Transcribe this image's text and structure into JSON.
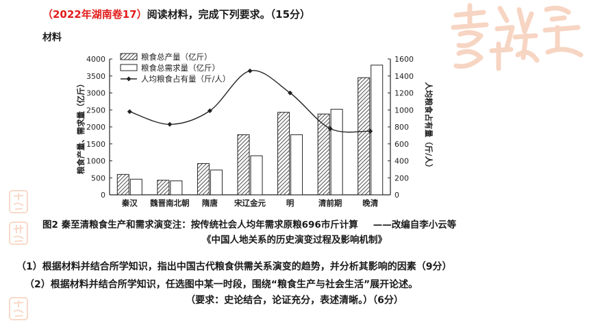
{
  "header": {
    "tag": "（2022年湖南卷17）",
    "instruction": "阅读材料，完成下列要求。（15分）",
    "material_label": "材料"
  },
  "chart_data": {
    "type": "bar",
    "categories": [
      "秦汉",
      "魏晋南北朝",
      "隋唐",
      "宋辽金元",
      "明",
      "清前期",
      "晚清"
    ],
    "series": [
      {
        "name": "粮食总产量（亿斤）",
        "values": [
          600,
          430,
          920,
          1770,
          2430,
          2380,
          3450
        ],
        "style": "hatched"
      },
      {
        "name": "粮食总需求量（亿斤）",
        "values": [
          460,
          410,
          730,
          1150,
          1770,
          2520,
          3820
        ],
        "style": "open"
      },
      {
        "name": "人均粮食占有量（斤/人）",
        "values": [
          980,
          830,
          990,
          1460,
          1200,
          780,
          750
        ],
        "style": "line"
      }
    ],
    "ylabel_left": "粮食产量、需求量（亿斤）",
    "ylabel_right": "人均粮食占有量（斤/人）",
    "ylim_left": [
      0,
      4000
    ],
    "ylim_right": [
      0,
      1600
    ],
    "yticks_left": [
      "0",
      "500",
      "1000",
      "1500",
      "2000",
      "2500",
      "3000",
      "3500",
      "4000"
    ],
    "yticks_right": [
      "0",
      "200",
      "400",
      "600",
      "800",
      "1000",
      "1200",
      "1400",
      "1600"
    ],
    "legend_position": "top-left",
    "grid": false
  },
  "caption": {
    "line1": "图2 秦至清粮食生产和需求演变注：按传统社会人均年需求原粮696市斤计算",
    "source": "——改编自李小云等",
    "line2": "《中国人地关系的历史演变过程及影响机制》"
  },
  "questions": {
    "q1": "（1）根据材料并结合所学知识，指出中国古代粮食供需关系演变的趋势，并分析其影响的因素（9分）",
    "q2": "（2）根据材料并结合所学知识，任选图中某一时段，围绕“粮食生产与社会生活”展开论述。",
    "q2_req": "（要求：史论结合，论证充分，表述清晰。）（6分）"
  },
  "colors": {
    "tag_red": "#e31b1b",
    "decoration": "#f2b493"
  },
  "decoration": {
    "icon": "auspicious-calligraphy-decoration"
  }
}
